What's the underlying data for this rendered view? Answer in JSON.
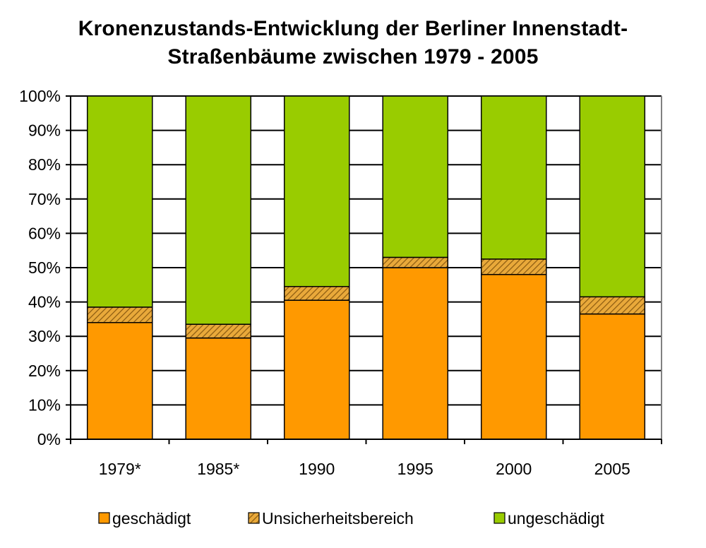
{
  "chart_data": {
    "type": "bar",
    "stacked": true,
    "title_lines": [
      "Kronenzustands-Entwicklung der Berliner Innenstadt-",
      "Straßenbäume zwischen 1979 - 2005"
    ],
    "categories": [
      "1979*",
      "1985*",
      "1990",
      "1995",
      "2000",
      "2005"
    ],
    "series": [
      {
        "name": "geschädigt",
        "color": "#ff9900",
        "pattern": "solid",
        "values": [
          34,
          29.5,
          40.5,
          50,
          48,
          36.5
        ]
      },
      {
        "name": "Unsicherheitsbereich",
        "color": "#c8851a",
        "pattern": "hatched",
        "values": [
          4.5,
          4,
          4,
          3,
          4.5,
          5
        ]
      },
      {
        "name": "ungeschädigt",
        "color": "#99cc00",
        "pattern": "solid",
        "values": [
          61.5,
          66.5,
          55.5,
          47,
          47.5,
          58.5
        ]
      }
    ],
    "y_axis": {
      "min": 0,
      "max": 100,
      "step": 10,
      "tick_labels": [
        "0%",
        "10%",
        "20%",
        "30%",
        "40%",
        "50%",
        "60%",
        "70%",
        "80%",
        "90%",
        "100%"
      ]
    },
    "grid": true,
    "legend_position": "bottom"
  }
}
